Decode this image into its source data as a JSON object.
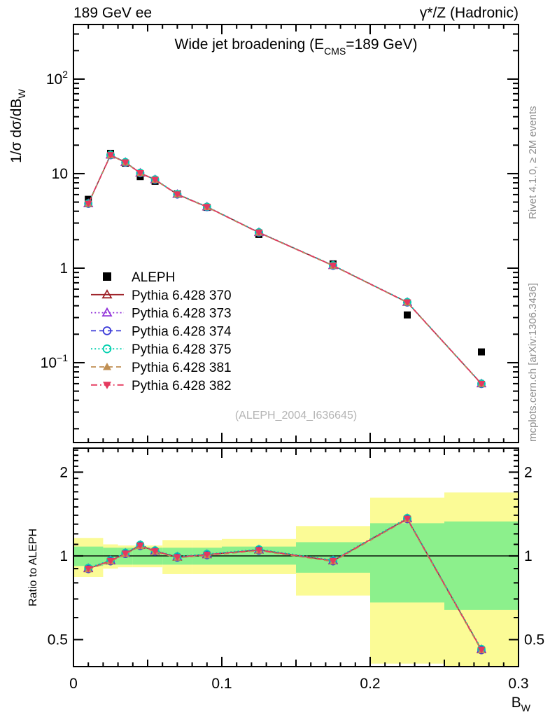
{
  "header": {
    "left": "189 GeV ee",
    "right": "γ*/Z (Hadronic)"
  },
  "side_notes": {
    "top": "Rivet 4.1.0, ≥ 2M events",
    "bottom": "mcplots.cern.ch [arXiv:1306.3436]"
  },
  "watermark": "(ALEPH_2004_I636645)",
  "chart_data": {
    "type": "line",
    "title": {
      "pre": "Wide jet broadening (E",
      "sub": "CMS",
      "post": "=189 GeV)"
    },
    "xlabel": {
      "pre": "B",
      "sub": "W"
    },
    "ylabel": {
      "pre": "1/σ  dσ/dB",
      "sub": "W"
    },
    "ratio_ylabel": "Ratio to ALEPH",
    "xlim": [
      0,
      0.3
    ],
    "main_ylim": [
      0.0143,
      378
    ],
    "ratio_ylim": [
      0.4,
      2.44
    ],
    "x_major_ticks": [
      0,
      0.1,
      0.2,
      0.3
    ],
    "x_tick_labels": [
      "0",
      "0.1",
      "0.2",
      "0.3"
    ],
    "main_yticks": [
      {
        "value": 100,
        "base": "10",
        "exp": "2"
      },
      {
        "value": 10,
        "base": "10",
        "exp": ""
      },
      {
        "value": 1,
        "base": "1",
        "exp": ""
      },
      {
        "value": 0.1,
        "base": "10",
        "exp": "−1"
      }
    ],
    "ratio_yticks": [
      {
        "value": 2,
        "label": "2"
      },
      {
        "value": 1,
        "label": "1"
      },
      {
        "value": 0.5,
        "label": "0.5"
      }
    ],
    "x": [
      0.01,
      0.025,
      0.035,
      0.045,
      0.055,
      0.07,
      0.09,
      0.125,
      0.175,
      0.225,
      0.275
    ],
    "aleph_values": [
      5.35,
      16.4,
      12.9,
      9.3,
      8.3,
      6.1,
      4.4,
      2.27,
      1.11,
      0.32,
      0.13
    ],
    "mc_ratio": [
      0.9,
      0.96,
      1.02,
      1.09,
      1.04,
      0.99,
      1.01,
      1.05,
      0.96,
      1.36,
      0.46
    ],
    "series": [
      {
        "name": "ALEPH",
        "color": "#000000",
        "marker": "square",
        "line": "none"
      },
      {
        "name": "Pythia 6.428 370",
        "color": "#9e2228",
        "marker": "triangle-open",
        "line": "solid"
      },
      {
        "name": "Pythia 6.428 373",
        "color": "#9030d8",
        "marker": "triangle-open",
        "line": "dotted"
      },
      {
        "name": "Pythia 6.428 374",
        "color": "#3c3cd8",
        "marker": "circle-open",
        "line": "dashed"
      },
      {
        "name": "Pythia 6.428 375",
        "color": "#00cfae",
        "marker": "circle-open",
        "line": "dotted"
      },
      {
        "name": "Pythia 6.428 381",
        "color": "#c08f52",
        "marker": "triangle-filled",
        "line": "dashed"
      },
      {
        "name": "Pythia 6.428 382",
        "color": "#e5395e",
        "marker": "triangle-down-filled",
        "line": "dashdot"
      }
    ],
    "bands": {
      "edges": [
        0,
        0.02,
        0.03,
        0.04,
        0.05,
        0.06,
        0.08,
        0.1,
        0.15,
        0.2,
        0.25,
        0.3
      ],
      "yellow": [
        [
          0.84,
          1.16
        ],
        [
          0.9,
          1.1
        ],
        [
          0.91,
          1.09
        ],
        [
          0.91,
          1.09
        ],
        [
          0.91,
          1.09
        ],
        [
          0.86,
          1.14
        ],
        [
          0.86,
          1.14
        ],
        [
          0.86,
          1.15
        ],
        [
          0.72,
          1.28
        ],
        [
          0.41,
          1.62
        ],
        [
          0.38,
          1.69
        ]
      ],
      "green": [
        [
          0.92,
          1.08
        ],
        [
          0.93,
          1.07
        ],
        [
          0.93,
          1.07
        ],
        [
          0.93,
          1.07
        ],
        [
          0.93,
          1.07
        ],
        [
          0.93,
          1.07
        ],
        [
          0.93,
          1.07
        ],
        [
          0.93,
          1.08
        ],
        [
          0.87,
          1.12
        ],
        [
          0.68,
          1.31
        ],
        [
          0.64,
          1.33
        ]
      ]
    },
    "band_colors": {
      "yellow": "#fbfb96",
      "green": "#8cf08c"
    }
  }
}
